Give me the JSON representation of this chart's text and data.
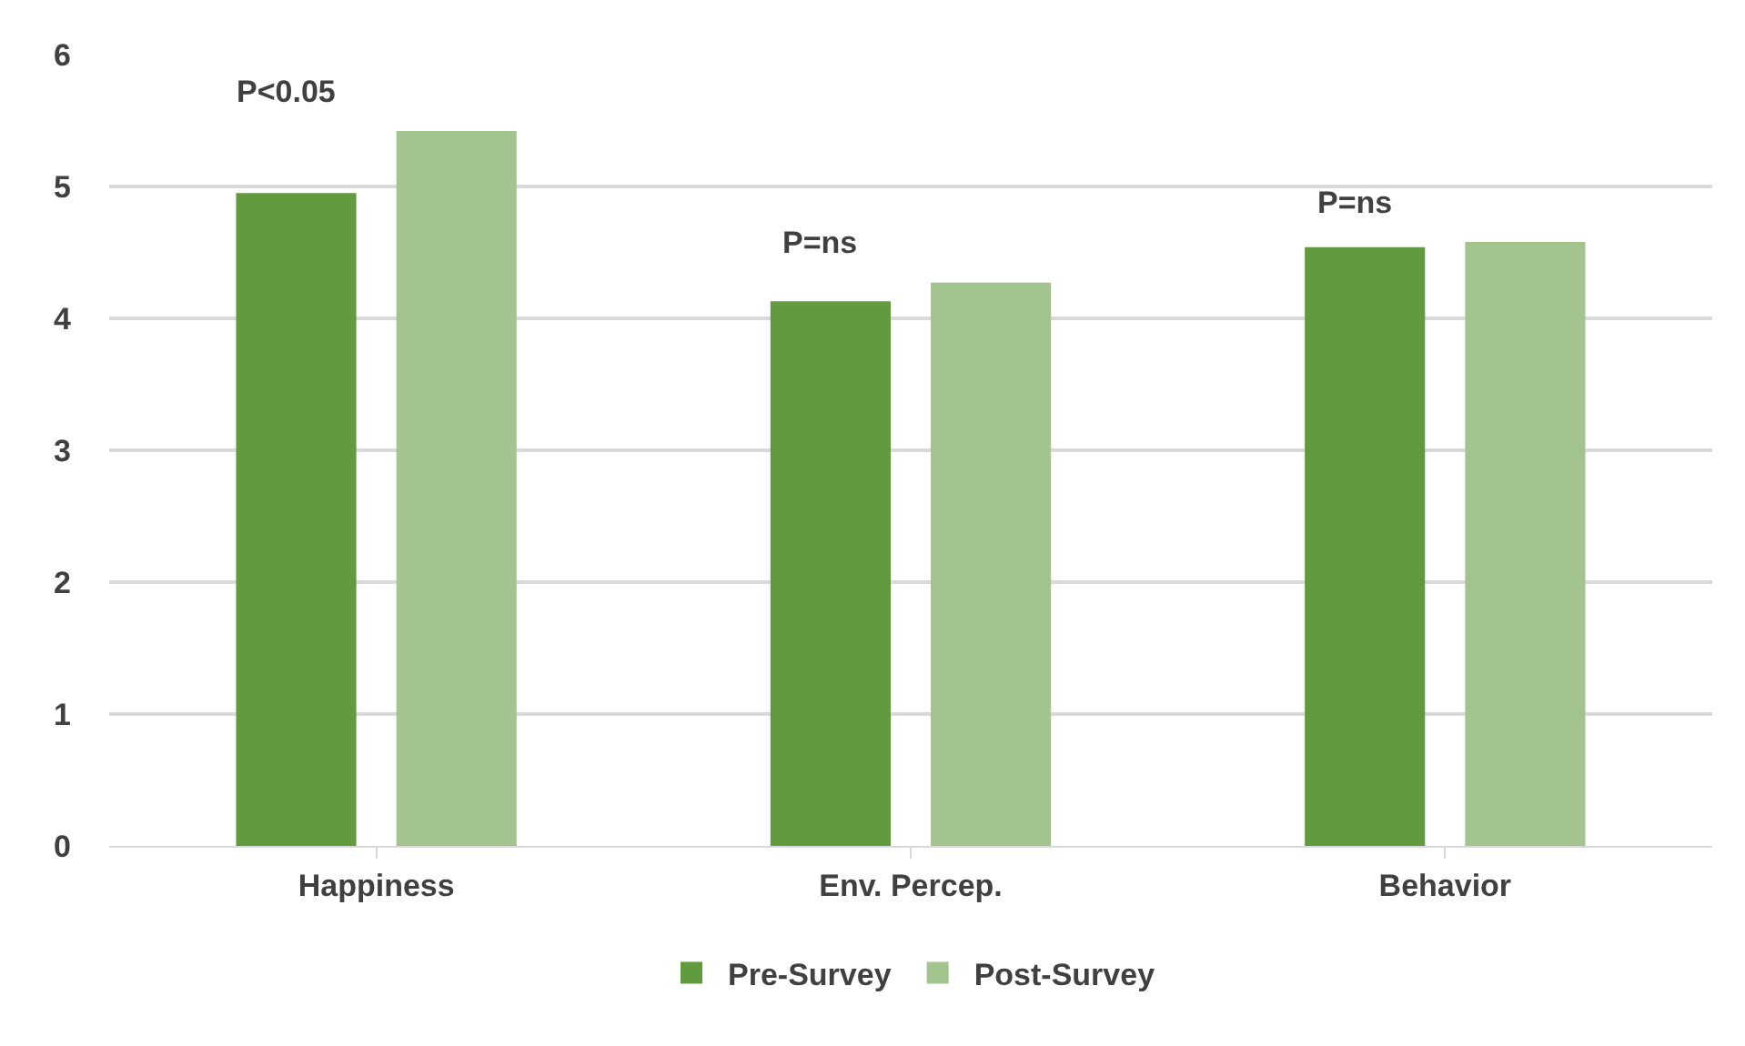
{
  "chart_data": {
    "type": "bar",
    "categories": [
      "Happiness",
      "Env. Percep.",
      "Behavior"
    ],
    "series": [
      {
        "name": "Pre-Survey",
        "color": "#629a3f",
        "values": [
          4.95,
          4.13,
          4.54
        ]
      },
      {
        "name": "Post-Survey",
        "color": "#a3c48f",
        "values": [
          5.42,
          4.27,
          4.58
        ]
      }
    ],
    "ylim": [
      0,
      6
    ],
    "yticks": [
      0,
      1,
      2,
      3,
      4,
      5,
      6
    ],
    "grid": "y",
    "legend": "bottom",
    "annotations": [
      "P<0.05",
      "P=ns",
      "P=ns"
    ]
  }
}
